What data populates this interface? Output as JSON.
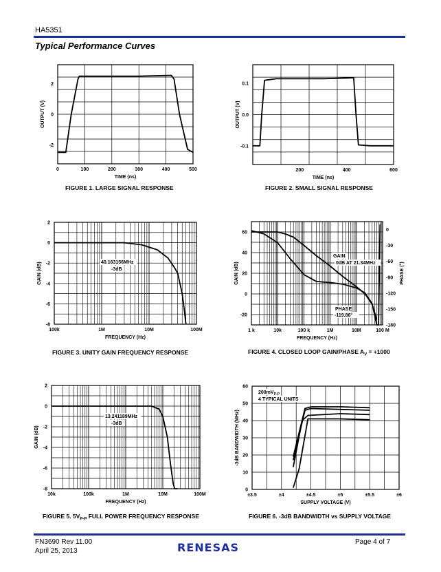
{
  "header": {
    "part": "HA5351",
    "section_title": "Typical Performance Curves"
  },
  "footer": {
    "doc": "FN3690  Rev 11.00",
    "date": "April 25, 2013",
    "page": "Page 4 of 7",
    "logo": "RENESAS"
  },
  "colors": {
    "rule": "#1f2f9a"
  },
  "chart_data": [
    {
      "id": "fig1",
      "type": "line",
      "caption": "FIGURE 1.  LARGE SIGNAL RESPONSE",
      "xlabel": "TIME (ns)",
      "ylabel": "OUTPUT (V)",
      "xlim": [
        0,
        500
      ],
      "ylim": [
        -3.25,
        3.25
      ],
      "xscale": "linear",
      "xticks": [
        0,
        100,
        200,
        300,
        400,
        500
      ],
      "xtick_labels": [
        "0",
        "100",
        "200",
        "300",
        "400",
        "500"
      ],
      "yticks": [
        -2,
        0,
        2
      ],
      "ytick_labels": [
        "-2",
        "0",
        "2"
      ],
      "grid": true,
      "series": [
        {
          "x": [
            0,
            30,
            50,
            75,
            80,
            100,
            200,
            300,
            420,
            430,
            450,
            480,
            500
          ],
          "y": [
            -2.5,
            -2.5,
            0,
            2.3,
            2.5,
            2.5,
            2.5,
            2.5,
            2.55,
            2.3,
            0,
            -2.3,
            -2.5
          ]
        }
      ]
    },
    {
      "id": "fig2",
      "type": "line",
      "caption": "FIGURE 2.  SMALL SIGNAL RESPONSE",
      "xlabel": "TIME (ns)",
      "ylabel": "OUTPUT (V)",
      "xlim": [
        0,
        600
      ],
      "ylim": [
        -0.16,
        0.16
      ],
      "xscale": "linear",
      "xticks": [
        200,
        400,
        600
      ],
      "xtick_labels": [
        "200",
        "400",
        "600"
      ],
      "yticks": [
        -0.1,
        0,
        0.1
      ],
      "ytick_labels": [
        "-0.1",
        "0.0",
        "0.1"
      ],
      "grid": true,
      "series": [
        {
          "x": [
            0,
            30,
            38,
            50,
            100,
            200,
            300,
            430,
            440,
            450,
            500,
            600
          ],
          "y": [
            -0.1,
            -0.1,
            0,
            0.11,
            0.115,
            0.115,
            0.115,
            0.118,
            0,
            -0.097,
            -0.1,
            -0.1
          ]
        }
      ]
    },
    {
      "id": "fig3",
      "type": "line",
      "caption": "FIGURE 3.  UNITY GAIN FREQUENCY RESPONSE",
      "xlabel": "FREQUENCY (Hz)",
      "ylabel": "GAIN (dB)",
      "xlim": [
        100000,
        100000000
      ],
      "ylim": [
        -8,
        2
      ],
      "xscale": "log",
      "xticks": [
        100000,
        1000000,
        10000000,
        100000000
      ],
      "xtick_labels": [
        "100k",
        "1M",
        "10M",
        "100M"
      ],
      "yticks": [
        -8,
        -6,
        -4,
        -2,
        0,
        2
      ],
      "ytick_labels": [
        "-8",
        "-6",
        "-4",
        "-2",
        "0",
        "2"
      ],
      "grid": true,
      "annotations": [
        {
          "text": [
            "40.163156MHz",
            "-3dB"
          ],
          "x": 40163156,
          "y": -3
        }
      ],
      "series": [
        {
          "x": [
            100000,
            1000000,
            3000000,
            7000000,
            15000000,
            25000000,
            35000000,
            40163156,
            50000000,
            55000000,
            60000000
          ],
          "y": [
            0,
            0,
            0,
            -0.2,
            -0.7,
            -1.5,
            -2.5,
            -3,
            -5,
            -6.5,
            -8
          ]
        }
      ]
    },
    {
      "id": "fig4",
      "type": "line",
      "caption": "FIGURE 4.  CLOSED LOOP GAIN/PHASE A",
      "caption_sub": "V",
      "caption_tail": " = +1000",
      "xlabel": "FREQUENCY (Hz)",
      "ylabel": "GAIN (dB)",
      "ylabel_right": "PHASE (°)",
      "xlim": [
        1000,
        100000000
      ],
      "ylim": [
        -30,
        70
      ],
      "xscale": "log",
      "xticks": [
        1000,
        10000,
        100000,
        1000000,
        10000000,
        100000000
      ],
      "xtick_labels": [
        "1 k",
        "10k",
        "100 k",
        "1M",
        "10M",
        "100 M"
      ],
      "yticks": [
        -20,
        0,
        20,
        40,
        60
      ],
      "ytick_labels": [
        "-20",
        "0",
        "20",
        "40",
        "60"
      ],
      "ylim_right": [
        -180,
        15
      ],
      "yticks_right": [
        0,
        -30,
        -60,
        -90,
        -120,
        -150,
        -180
      ],
      "ytick_labels_right": [
        "0",
        "-30",
        "-60",
        "-90",
        "-120",
        "-150",
        "-180"
      ],
      "grid": true,
      "annotations": [
        {
          "text": [
            "GAIN",
            "0dB AT 21.34MHz"
          ],
          "x": 21340000,
          "y": 0
        },
        {
          "text": [
            "PHASE",
            "-119.86°"
          ],
          "x": 21340000,
          "y": -119.86
        }
      ],
      "series": [
        {
          "name": "GAIN",
          "x": [
            1000,
            10000,
            20000,
            40000,
            100000,
            300000,
            1000000,
            3000000,
            10000000,
            21340000,
            40000000,
            60000000
          ],
          "y": [
            60,
            60,
            58,
            55,
            47,
            37,
            27,
            17,
            7,
            0,
            -10,
            -25
          ]
        },
        {
          "name": "PHASE",
          "x": [
            1000,
            3000,
            10000,
            30000,
            100000,
            300000,
            1000000,
            3000000,
            10000000,
            21340000,
            40000000,
            60000000,
            70000000,
            80000000
          ],
          "y": [
            -2,
            -8,
            -25,
            -55,
            -85,
            -98,
            -100,
            -103,
            -110,
            -119.86,
            -140,
            -180,
            -180,
            10
          ]
        }
      ]
    },
    {
      "id": "fig5",
      "type": "line",
      "caption": "FIGURE 5.  5V",
      "caption_sub": "P-P",
      "caption_tail": " FULL POWER FREQUENCY RESPONSE",
      "xlabel": "FREQUENCY (Hz)",
      "ylabel": "GAIN (dB)",
      "xlim": [
        10000,
        100000000
      ],
      "ylim": [
        -8,
        2
      ],
      "xscale": "log",
      "xticks": [
        10000,
        100000,
        1000000,
        10000000,
        100000000
      ],
      "xtick_labels": [
        "10k",
        "100k",
        "1M",
        "10M",
        "100M"
      ],
      "yticks": [
        -8,
        -6,
        -4,
        -2,
        0,
        2
      ],
      "ytick_labels": [
        "-8",
        "-6",
        "-4",
        "-2",
        "0",
        "2"
      ],
      "grid": true,
      "annotations": [
        {
          "text": [
            "13.241189MHz",
            "-3dB"
          ],
          "x": 13241189,
          "y": -3
        }
      ],
      "series": [
        {
          "x": [
            10000,
            1000000,
            5000000,
            8000000,
            10000000,
            13241189,
            16000000,
            19000000,
            21000000,
            25000000
          ],
          "y": [
            0,
            0,
            0,
            -0.3,
            -1,
            -3,
            -5.5,
            -7.5,
            -8,
            -8
          ]
        }
      ]
    },
    {
      "id": "fig6",
      "type": "line",
      "caption": "FIGURE 6.  -3dB BANDWIDTH vs SUPPLY VOLTAGE",
      "xlabel": "SUPPLY VOLTAGE (V)",
      "ylabel": "-3dB BANDWIDTH (MHz)",
      "xlim": [
        3.5,
        6
      ],
      "ylim": [
        0,
        60
      ],
      "xscale": "linear",
      "xticks": [
        3.5,
        4,
        4.5,
        5,
        5.5,
        6
      ],
      "xtick_labels": [
        "±3.5",
        "±4",
        "±4.5",
        "±5",
        "±5.5",
        "±6"
      ],
      "yticks": [
        0,
        10,
        20,
        30,
        40,
        50,
        60
      ],
      "ytick_labels": [
        "0",
        "10",
        "20",
        "30",
        "40",
        "50",
        "60"
      ],
      "grid": true,
      "annotations": [
        {
          "text": [
            "200mV",
            "4 TYPICAL UNITS"
          ],
          "sub": "P-P",
          "x": 4.4,
          "y": 48
        }
      ],
      "series": [
        {
          "x": [
            4.2,
            4.4,
            4.5,
            5,
            5.5
          ],
          "y": [
            19,
            47,
            48,
            48,
            47.5
          ]
        },
        {
          "x": [
            4.2,
            4.4,
            4.5,
            5,
            5.5
          ],
          "y": [
            17,
            46,
            47,
            46.5,
            46
          ]
        },
        {
          "x": [
            4.2,
            4.35,
            4.45,
            5,
            5.5
          ],
          "y": [
            13,
            40,
            43,
            44,
            43.5
          ]
        },
        {
          "x": [
            4.2,
            4.3,
            4.45,
            5,
            5.5
          ],
          "y": [
            1,
            12,
            41,
            41,
            40.5
          ]
        }
      ]
    }
  ]
}
